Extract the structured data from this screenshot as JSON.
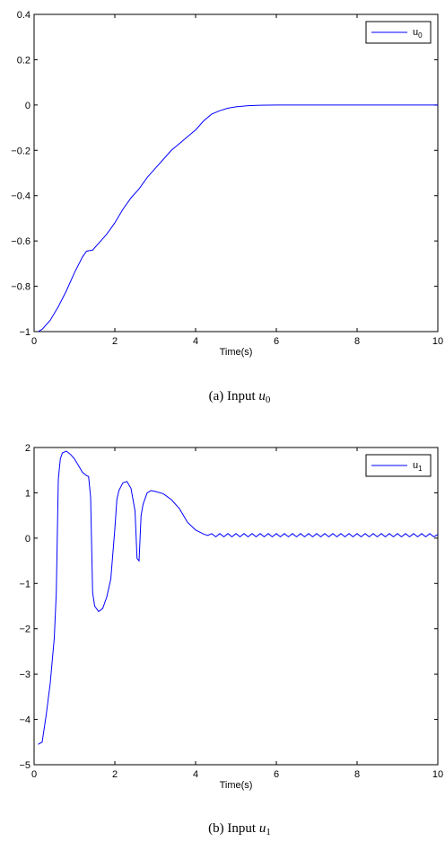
{
  "chart_data": [
    {
      "type": "line",
      "title": "",
      "xlabel": "Time(s)",
      "ylabel": "",
      "xlim": [
        0,
        10
      ],
      "ylim": [
        -1,
        0.4
      ],
      "xticks": [
        "0",
        "2",
        "4",
        "6",
        "8",
        "10"
      ],
      "yticks": [
        "-1",
        "-0.8",
        "-0.6",
        "-0.4",
        "-0.2",
        "0",
        "0.2",
        "0.4"
      ],
      "grid": false,
      "legend": {
        "position": "top-right",
        "label_base": "u",
        "label_sub": "0"
      },
      "caption": {
        "prefix": "(a)  Input ",
        "var": "u",
        "sub": "0"
      },
      "series": [
        {
          "color": "#0000ff",
          "x": [
            0.1,
            0.2,
            0.4,
            0.6,
            0.8,
            1.0,
            1.2,
            1.3,
            1.45,
            1.6,
            1.8,
            2.0,
            2.2,
            2.4,
            2.6,
            2.8,
            3.0,
            3.2,
            3.4,
            3.6,
            3.8,
            4.0,
            4.2,
            4.4,
            4.6,
            4.8,
            5.0,
            5.3,
            5.6,
            6.0,
            7.0,
            8.0,
            9.0,
            10.0
          ],
          "y": [
            -1.0,
            -0.99,
            -0.95,
            -0.89,
            -0.82,
            -0.74,
            -0.67,
            -0.645,
            -0.64,
            -0.61,
            -0.57,
            -0.52,
            -0.46,
            -0.41,
            -0.37,
            -0.32,
            -0.28,
            -0.24,
            -0.2,
            -0.17,
            -0.14,
            -0.11,
            -0.07,
            -0.04,
            -0.025,
            -0.014,
            -0.008,
            -0.003,
            -0.001,
            0.0,
            0.0,
            0.0,
            0.0,
            0.0
          ]
        }
      ]
    },
    {
      "type": "line",
      "title": "",
      "xlabel": "Time(s)",
      "ylabel": "",
      "xlim": [
        0,
        10
      ],
      "ylim": [
        -5,
        2
      ],
      "xticks": [
        "0",
        "2",
        "4",
        "6",
        "8",
        "10"
      ],
      "yticks": [
        "-5",
        "-4",
        "-3",
        "-2",
        "-1",
        "0",
        "1",
        "2"
      ],
      "grid": false,
      "legend": {
        "position": "top-right",
        "label_base": "u",
        "label_sub": "1"
      },
      "caption": {
        "prefix": "(b)  Input ",
        "var": "u",
        "sub": "1"
      },
      "series": [
        {
          "color": "#0000ff",
          "x": [
            0.1,
            0.2,
            0.3,
            0.4,
            0.5,
            0.55,
            0.6,
            0.65,
            0.7,
            0.8,
            0.9,
            1.0,
            1.1,
            1.2,
            1.3,
            1.35,
            1.4,
            1.45,
            1.5,
            1.6,
            1.7,
            1.8,
            1.9,
            2.0,
            2.05,
            2.1,
            2.2,
            2.3,
            2.4,
            2.5,
            2.55,
            2.6,
            2.65,
            2.7,
            2.8,
            2.9,
            3.0,
            3.2,
            3.4,
            3.6,
            3.8,
            4.0,
            4.2,
            4.3,
            4.4,
            4.5,
            4.6,
            4.7,
            4.8,
            4.9,
            5.0,
            5.1,
            5.2,
            5.3,
            5.4,
            5.5,
            5.6,
            5.7,
            5.8,
            5.9,
            6.0,
            6.1,
            6.2,
            6.3,
            6.4,
            6.5,
            6.6,
            6.7,
            6.8,
            6.9,
            7.0,
            7.1,
            7.2,
            7.3,
            7.4,
            7.5,
            7.6,
            7.7,
            7.8,
            7.9,
            8.0,
            8.1,
            8.2,
            8.3,
            8.4,
            8.5,
            8.6,
            8.7,
            8.8,
            8.9,
            9.0,
            9.1,
            9.2,
            9.3,
            9.4,
            9.5,
            9.6,
            9.7,
            9.8,
            9.9,
            10.0
          ],
          "y": [
            -4.55,
            -4.5,
            -3.9,
            -3.2,
            -2.2,
            -1.2,
            1.3,
            1.75,
            1.88,
            1.92,
            1.85,
            1.75,
            1.6,
            1.45,
            1.38,
            1.36,
            0.9,
            -1.2,
            -1.5,
            -1.62,
            -1.55,
            -1.3,
            -0.9,
            0.2,
            0.85,
            1.05,
            1.22,
            1.25,
            1.1,
            0.6,
            -0.45,
            -0.5,
            0.5,
            0.75,
            1.0,
            1.05,
            1.03,
            0.98,
            0.85,
            0.65,
            0.35,
            0.18,
            0.09,
            0.06,
            0.1,
            0.03,
            0.1,
            0.03,
            0.1,
            0.03,
            0.1,
            0.03,
            0.1,
            0.03,
            0.1,
            0.03,
            0.1,
            0.03,
            0.1,
            0.03,
            0.1,
            0.03,
            0.1,
            0.03,
            0.1,
            0.03,
            0.1,
            0.03,
            0.1,
            0.03,
            0.1,
            0.03,
            0.1,
            0.03,
            0.1,
            0.03,
            0.1,
            0.03,
            0.1,
            0.03,
            0.1,
            0.03,
            0.1,
            0.03,
            0.1,
            0.03,
            0.1,
            0.03,
            0.1,
            0.03,
            0.1,
            0.03,
            0.1,
            0.03,
            0.1,
            0.03,
            0.1,
            0.03,
            0.1,
            0.03,
            0.08
          ]
        }
      ]
    }
  ]
}
